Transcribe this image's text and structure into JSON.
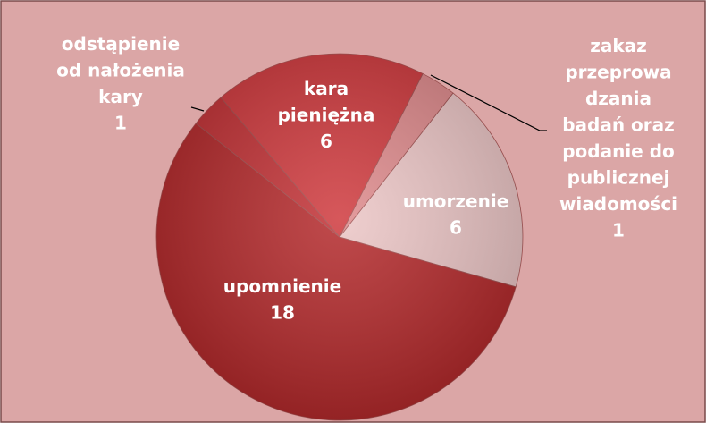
{
  "chart_data": {
    "type": "pie",
    "categories": [
      "upomnienie",
      "odstąpienie\nod nałożenia\nkary",
      "kara\npieniężna",
      "zakaz\nprzeprowa\ndzania\nbadań oraz\npodanie do\npublicznej\nwiadomości",
      "umorzenie"
    ],
    "values": [
      18,
      1,
      6,
      1,
      6
    ],
    "colors": [
      "#b42a2c",
      "#c23236",
      "#cf3a3e",
      "#de8a8c",
      "#ecc6c6"
    ]
  }
}
